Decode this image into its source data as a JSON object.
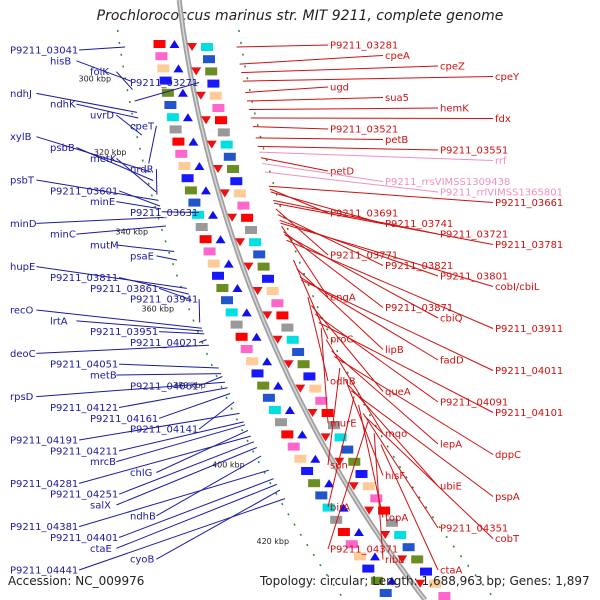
{
  "title": "Prochlorococcus marinus str. MIT 9211, complete genome",
  "footer": {
    "accession": "Accession: NC_009976",
    "topology": "Topology: circular; Length: 1,688,963 bp; Genes: 1,897"
  },
  "colors": {
    "left_labels": "#1a1aa0",
    "right_labels": "#d01010",
    "rna_labels": "#f090c0",
    "backbone": "#a0a0a0",
    "tick": "#2a8a2a"
  },
  "kbp_marks": [
    {
      "text": "300 kbp",
      "pos": 0.085
    },
    {
      "text": "320 kbp",
      "pos": 0.215
    },
    {
      "text": "340 kbp",
      "pos": 0.355
    },
    {
      "text": "360 kbp",
      "pos": 0.49
    },
    {
      "text": "380 kbp",
      "pos": 0.625
    },
    {
      "text": "400 kbp",
      "pos": 0.765
    },
    {
      "text": "420 kbp",
      "pos": 0.9
    }
  ],
  "left_labels": [
    {
      "text": "P9211_03041",
      "pos": 0.03
    },
    {
      "text": "hisB",
      "pos": 0.09
    },
    {
      "text": "folK",
      "pos": 0.105
    },
    {
      "text": "P9211_03271",
      "pos": 0.125
    },
    {
      "text": "ndhJ",
      "pos": 0.145
    },
    {
      "text": "ndhK",
      "pos": 0.155
    },
    {
      "text": "uvrD",
      "pos": 0.185
    },
    {
      "text": "cpeT",
      "pos": 0.235
    },
    {
      "text": "xylB",
      "pos": 0.25
    },
    {
      "text": "psbB",
      "pos": 0.265
    },
    {
      "text": "metK",
      "pos": 0.285
    },
    {
      "text": "nrdR",
      "pos": 0.29
    },
    {
      "text": "psbT",
      "pos": 0.3
    },
    {
      "text": "P9211_03601",
      "pos": 0.31
    },
    {
      "text": "minE",
      "pos": 0.315
    },
    {
      "text": "P9211_03631",
      "pos": 0.32
    },
    {
      "text": "minD",
      "pos": 0.33
    },
    {
      "text": "minC",
      "pos": 0.345
    },
    {
      "text": "mutM",
      "pos": 0.39
    },
    {
      "text": "psaE",
      "pos": 0.405
    },
    {
      "text": "hupE",
      "pos": 0.455
    },
    {
      "text": "P9211_03811",
      "pos": 0.465
    },
    {
      "text": "P9211_03861",
      "pos": 0.475
    },
    {
      "text": "P9211_03941",
      "pos": 0.515
    },
    {
      "text": "recO",
      "pos": 0.525
    },
    {
      "text": "lrtA",
      "pos": 0.53
    },
    {
      "text": "P9211_03951",
      "pos": 0.535
    },
    {
      "text": "P9211_04021",
      "pos": 0.545
    },
    {
      "text": "deoC",
      "pos": 0.555
    },
    {
      "text": "P9211_04051",
      "pos": 0.595
    },
    {
      "text": "metB",
      "pos": 0.605
    },
    {
      "text": "P9211_04061",
      "pos": 0.61
    },
    {
      "text": "rpsD",
      "pos": 0.62
    },
    {
      "text": "P9211_04121",
      "pos": 0.63
    },
    {
      "text": "P9211_04161",
      "pos": 0.64
    },
    {
      "text": "P9211_04141",
      "pos": 0.655
    },
    {
      "text": "P9211_04191",
      "pos": 0.675
    },
    {
      "text": "P9211_04211",
      "pos": 0.69
    },
    {
      "text": "mrcB",
      "pos": 0.695
    },
    {
      "text": "chlG",
      "pos": 0.705
    },
    {
      "text": "P9211_04281",
      "pos": 0.715
    },
    {
      "text": "P9211_04251",
      "pos": 0.725
    },
    {
      "text": "salX",
      "pos": 0.735
    },
    {
      "text": "ndhB",
      "pos": 0.75
    },
    {
      "text": "P9211_04381",
      "pos": 0.775
    },
    {
      "text": "P9211_04401",
      "pos": 0.79
    },
    {
      "text": "ctaE",
      "pos": 0.8
    },
    {
      "text": "cyoB",
      "pos": 0.81
    },
    {
      "text": "P9211_04441",
      "pos": 0.825
    }
  ],
  "right_labels": [
    {
      "text": "P9211_03281",
      "pos": 0.03,
      "rna": false
    },
    {
      "text": "cpeA",
      "pos": 0.06,
      "rna": false
    },
    {
      "text": "cpeZ",
      "pos": 0.075,
      "rna": false
    },
    {
      "text": "cpeY",
      "pos": 0.09,
      "rna": false
    },
    {
      "text": "ugd",
      "pos": 0.11,
      "rna": false
    },
    {
      "text": "sua5",
      "pos": 0.125,
      "rna": false
    },
    {
      "text": "hemK",
      "pos": 0.14,
      "rna": false
    },
    {
      "text": "fdx",
      "pos": 0.155,
      "rna": false
    },
    {
      "text": "P9211_03521",
      "pos": 0.17,
      "rna": false
    },
    {
      "text": "petB",
      "pos": 0.19,
      "rna": false
    },
    {
      "text": "P9211_03551",
      "pos": 0.205,
      "rna": false
    },
    {
      "text": "rrf",
      "pos": 0.215,
      "rna": true
    },
    {
      "text": "petD",
      "pos": 0.225,
      "rna": false
    },
    {
      "text": "P9211_rrsVIMSS1309438",
      "pos": 0.235,
      "rna": true
    },
    {
      "text": "P9211_rrlVIMSS1365801",
      "pos": 0.25,
      "rna": true
    },
    {
      "text": "P9211_03661",
      "pos": 0.275,
      "rna": false
    },
    {
      "text": "P9211_03691",
      "pos": 0.28,
      "rna": false
    },
    {
      "text": "P9211_03741",
      "pos": 0.285,
      "rna": false
    },
    {
      "text": "P9211_03721",
      "pos": 0.3,
      "rna": false
    },
    {
      "text": "P9211_03781",
      "pos": 0.305,
      "rna": false
    },
    {
      "text": "P9211_03771",
      "pos": 0.315,
      "rna": false
    },
    {
      "text": "P9211_03821",
      "pos": 0.325,
      "rna": false
    },
    {
      "text": "P9211_03801",
      "pos": 0.335,
      "rna": false
    },
    {
      "text": "cobI/cbiL",
      "pos": 0.34,
      "rna": false
    },
    {
      "text": "engA",
      "pos": 0.345,
      "rna": false
    },
    {
      "text": "P9211_03871",
      "pos": 0.355,
      "rna": false
    },
    {
      "text": "cbiQ",
      "pos": 0.36,
      "rna": false
    },
    {
      "text": "P9211_03911",
      "pos": 0.37,
      "rna": false
    },
    {
      "text": "proC",
      "pos": 0.405,
      "rna": false
    },
    {
      "text": "lipB",
      "pos": 0.42,
      "rna": false
    },
    {
      "text": "fadD",
      "pos": 0.435,
      "rna": false
    },
    {
      "text": "P9211_04011",
      "pos": 0.44,
      "rna": false
    },
    {
      "text": "odhB",
      "pos": 0.47,
      "rna": false
    },
    {
      "text": "queA",
      "pos": 0.485,
      "rna": false
    },
    {
      "text": "P9211_04091",
      "pos": 0.5,
      "rna": false
    },
    {
      "text": "P9211_04101",
      "pos": 0.515,
      "rna": false
    },
    {
      "text": "murE",
      "pos": 0.525,
      "rna": false
    },
    {
      "text": "mqo",
      "pos": 0.545,
      "rna": false
    },
    {
      "text": "lepA",
      "pos": 0.565,
      "rna": false
    },
    {
      "text": "dppC",
      "pos": 0.575,
      "rna": false
    },
    {
      "text": "sun",
      "pos": 0.595,
      "rna": false
    },
    {
      "text": "hisF",
      "pos": 0.615,
      "rna": false
    },
    {
      "text": "ubiE",
      "pos": 0.625,
      "rna": false
    },
    {
      "text": "pspA",
      "pos": 0.635,
      "rna": false
    },
    {
      "text": "birA",
      "pos": 0.645,
      "rna": false
    },
    {
      "text": "topA",
      "pos": 0.66,
      "rna": false
    },
    {
      "text": "P9211_04351",
      "pos": 0.675,
      "rna": false
    },
    {
      "text": "cobT",
      "pos": 0.68,
      "rna": false
    },
    {
      "text": "P9211_04371",
      "pos": 0.69,
      "rna": false
    },
    {
      "text": "ribE",
      "pos": 0.71,
      "rna": false
    },
    {
      "text": "ctaA",
      "pos": 0.73,
      "rna": false
    }
  ]
}
